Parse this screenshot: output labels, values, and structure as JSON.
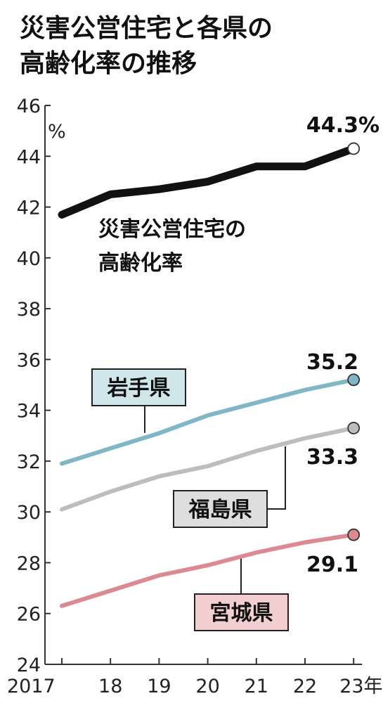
{
  "chart_data": {
    "type": "line",
    "title_lines": [
      "災害公営住宅と各県の",
      "高齢化率の推移"
    ],
    "unit": "%",
    "x": [
      "2017",
      "18",
      "19",
      "20",
      "21",
      "22",
      "23年"
    ],
    "ylim": [
      24,
      46
    ],
    "yticks": [
      "24",
      "26",
      "28",
      "30",
      "32",
      "34",
      "36",
      "38",
      "40",
      "42",
      "44",
      "46"
    ],
    "grid": false,
    "series": [
      {
        "name_lines": [
          "災害公営住宅の",
          "高齢化率"
        ],
        "color": "#111111",
        "values": [
          41.7,
          42.5,
          42.7,
          43.0,
          43.6,
          43.6,
          44.3
        ],
        "end_label": "44.3%"
      },
      {
        "name": "岩手県",
        "color": "#7fb8c4",
        "box_fill": "#cfe6ea",
        "values": [
          31.9,
          32.5,
          33.1,
          33.8,
          34.3,
          34.8,
          35.2
        ],
        "end_label": "35.2"
      },
      {
        "name": "福島県",
        "color": "#bdbdbd",
        "box_fill": "#dedede",
        "values": [
          30.1,
          30.8,
          31.4,
          31.8,
          32.4,
          32.9,
          33.3
        ],
        "end_label": "33.3"
      },
      {
        "name": "宮城県",
        "color": "#dc8a92",
        "box_fill": "#f3cfd1",
        "values": [
          26.3,
          26.9,
          27.5,
          27.9,
          28.4,
          28.8,
          29.1
        ],
        "end_label": "29.1"
      }
    ]
  }
}
